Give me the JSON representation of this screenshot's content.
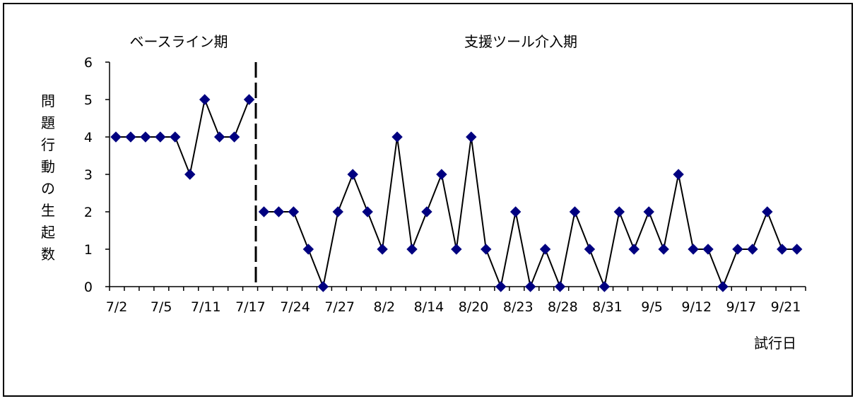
{
  "chart_data": {
    "type": "line",
    "phase_labels": [
      "ベースライン期",
      "支援ツール介入期"
    ],
    "ylabel": "問題行動の生起数",
    "xlabel": "試行日",
    "ylim": [
      0,
      6
    ],
    "yticks": [
      "0",
      "1",
      "2",
      "3",
      "4",
      "5",
      "6"
    ],
    "x_tick_labels": [
      "7/2",
      "7/5",
      "7/11",
      "7/17",
      "7/24",
      "7/27",
      "8/2",
      "8/14",
      "8/20",
      "8/23",
      "8/28",
      "8/31",
      "9/5",
      "9/12",
      "9/17",
      "9/21"
    ],
    "phase_change_after_index": 9,
    "series": [
      {
        "values": [
          4,
          4,
          4,
          4,
          4,
          3,
          5,
          4,
          4,
          5,
          2,
          2,
          2,
          1,
          0,
          2,
          3,
          2,
          1,
          4,
          1,
          2,
          3,
          1,
          4,
          1,
          0,
          2,
          0,
          1,
          0,
          2,
          1,
          0,
          2,
          1,
          2,
          1,
          3,
          1,
          1,
          0,
          1,
          1,
          2,
          1,
          1
        ]
      }
    ],
    "series_color": "#000000",
    "marker_color": "#000080",
    "grid": false
  }
}
